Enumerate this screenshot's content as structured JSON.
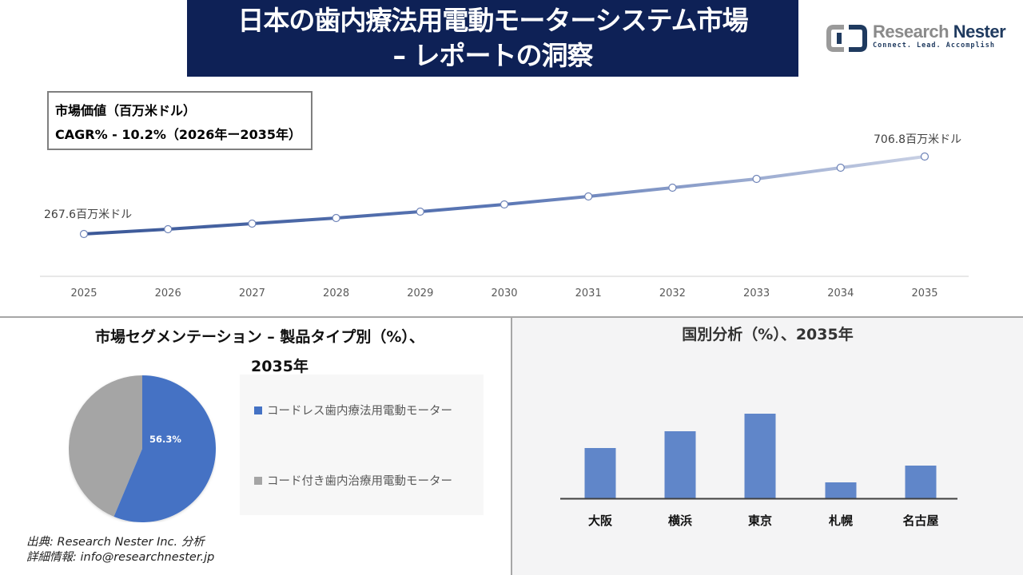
{
  "header": {
    "title_line1": "日本の歯内療法用電動モーターシステム市場",
    "title_line2": "– レポートの洞察"
  },
  "logo": {
    "name_part1": "Research",
    "name_part2": "Nester",
    "tagline": "Connect. Lead. Accomplish",
    "icon": "research-nester-logo-icon"
  },
  "info_box": {
    "line1": "市場価値（百万米ドル）",
    "line2": "CAGR% - 10.2%（2026年ー2035年）"
  },
  "segmentation": {
    "title_line1": "市場セグメンテーション – 製品タイプ別（%）、",
    "title_line2": "2035年"
  },
  "regional": {
    "title": "国別分析（%）、2035年"
  },
  "footer": {
    "source": "出典: Research Nester Inc. 分析",
    "contact": "詳細情報: info@researchnester.jp"
  },
  "colors": {
    "title_bg": "#0e2156",
    "line_start": "#3d5a99",
    "line_end": "#c5cde3",
    "pie_blue": "#4472c4",
    "pie_gray": "#a5a5a5",
    "bar_blue": "#6086c9"
  },
  "chart_data": [
    {
      "type": "line",
      "title": "市場価値（百万米ドル）",
      "subtitle": "CAGR% - 10.2%（2026年ー2035年）",
      "categories": [
        "2025",
        "2026",
        "2027",
        "2028",
        "2029",
        "2030",
        "2031",
        "2032",
        "2033",
        "2034",
        "2035"
      ],
      "values": [
        267.6,
        294.9,
        326.5,
        358.2,
        394.4,
        435.2,
        480.4,
        530.3,
        580.1,
        643.5,
        706.8
      ],
      "annotations": [
        {
          "x": "2025",
          "label": "267.6百万米ドル"
        },
        {
          "x": "2035",
          "label": "706.8百万米ドル"
        }
      ],
      "xlabel": "",
      "ylabel": "",
      "grid": false
    },
    {
      "type": "pie",
      "title": "市場セグメンテーション – 製品タイプ別（%）、2035年",
      "categories": [
        "コードレス歯内療法用電動モーター",
        "コード付き歯内治療用電動モーター"
      ],
      "values": [
        56.3,
        43.7
      ],
      "data_labels": [
        "56.3%",
        ""
      ],
      "legend_position": "right"
    },
    {
      "type": "bar",
      "title": "国別分析（%）、2035年",
      "categories": [
        "大阪",
        "横浜",
        "東京",
        "札幌",
        "名古屋"
      ],
      "values": [
        63,
        84,
        106,
        20,
        41
      ],
      "xlabel": "",
      "ylabel": "",
      "grid": false
    }
  ]
}
